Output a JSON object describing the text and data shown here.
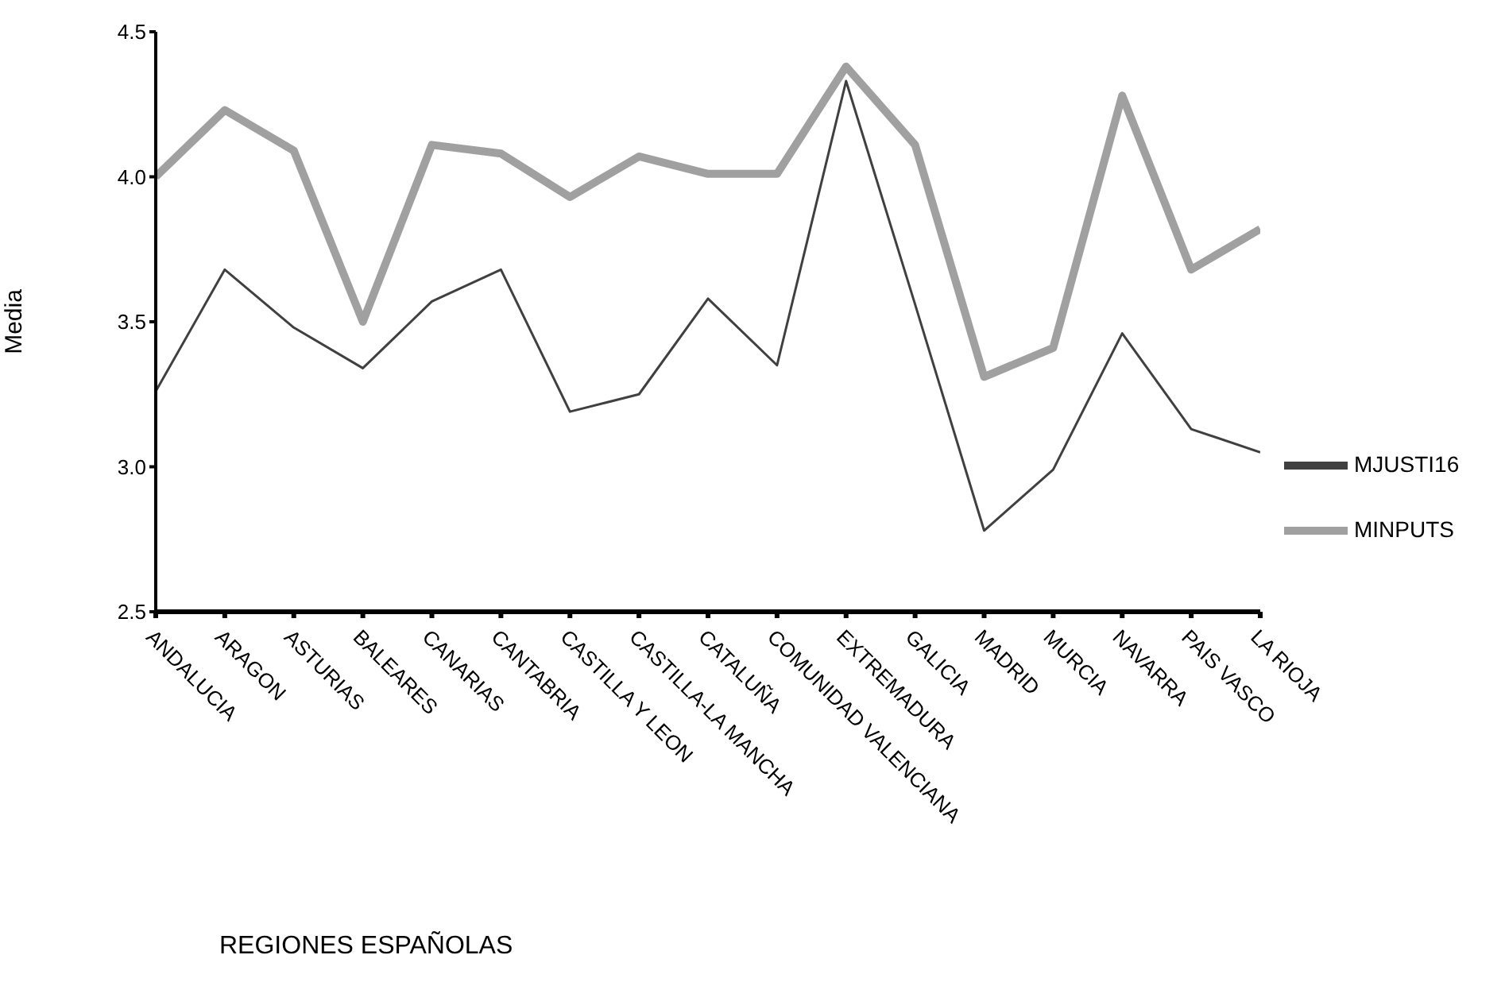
{
  "chart_data": {
    "type": "line",
    "xlabel": "REGIONES  ESPAÑOLAS",
    "ylabel": "Media",
    "categories": [
      "ANDALUCIA",
      "ARAGON",
      "ASTURIAS",
      "BALEARES",
      "CANARIAS",
      "CANTABRIA",
      "CASTILLA Y LEON",
      "CASTILLA-LA MANCHA",
      "CATALUÑA",
      "COMUNIDAD VALENCIANA",
      "EXTREMADURA",
      "GALICIA",
      "MADRID",
      "MURCIA",
      "NAVARRA",
      "PAIS VASCO",
      "LA RIOJA"
    ],
    "series": [
      {
        "name": "MJUSTI16",
        "color": "#404040",
        "values": [
          3.26,
          3.68,
          3.48,
          3.34,
          3.57,
          3.68,
          3.19,
          3.25,
          3.58,
          3.35,
          4.33,
          3.56,
          2.78,
          2.99,
          3.46,
          3.13,
          3.05
        ]
      },
      {
        "name": "MINPUTS",
        "color": "#a0a0a0",
        "values": [
          4.0,
          4.23,
          4.09,
          3.5,
          4.11,
          4.08,
          3.93,
          4.07,
          4.01,
          4.01,
          4.38,
          4.11,
          3.31,
          3.41,
          4.28,
          3.68,
          3.82
        ]
      }
    ],
    "ylim": [
      2.5,
      4.5
    ],
    "yticks": [
      {
        "value": 2.5,
        "label": "2.5"
      },
      {
        "value": 3,
        "label": "3.0"
      },
      {
        "value": 3.5,
        "label": "3.5"
      },
      {
        "value": 4,
        "label": "4.0"
      },
      {
        "value": 4.5,
        "label": "4.5"
      }
    ],
    "grid": false,
    "legend": "bottom right",
    "marker": "none",
    "line_style": "solid"
  }
}
